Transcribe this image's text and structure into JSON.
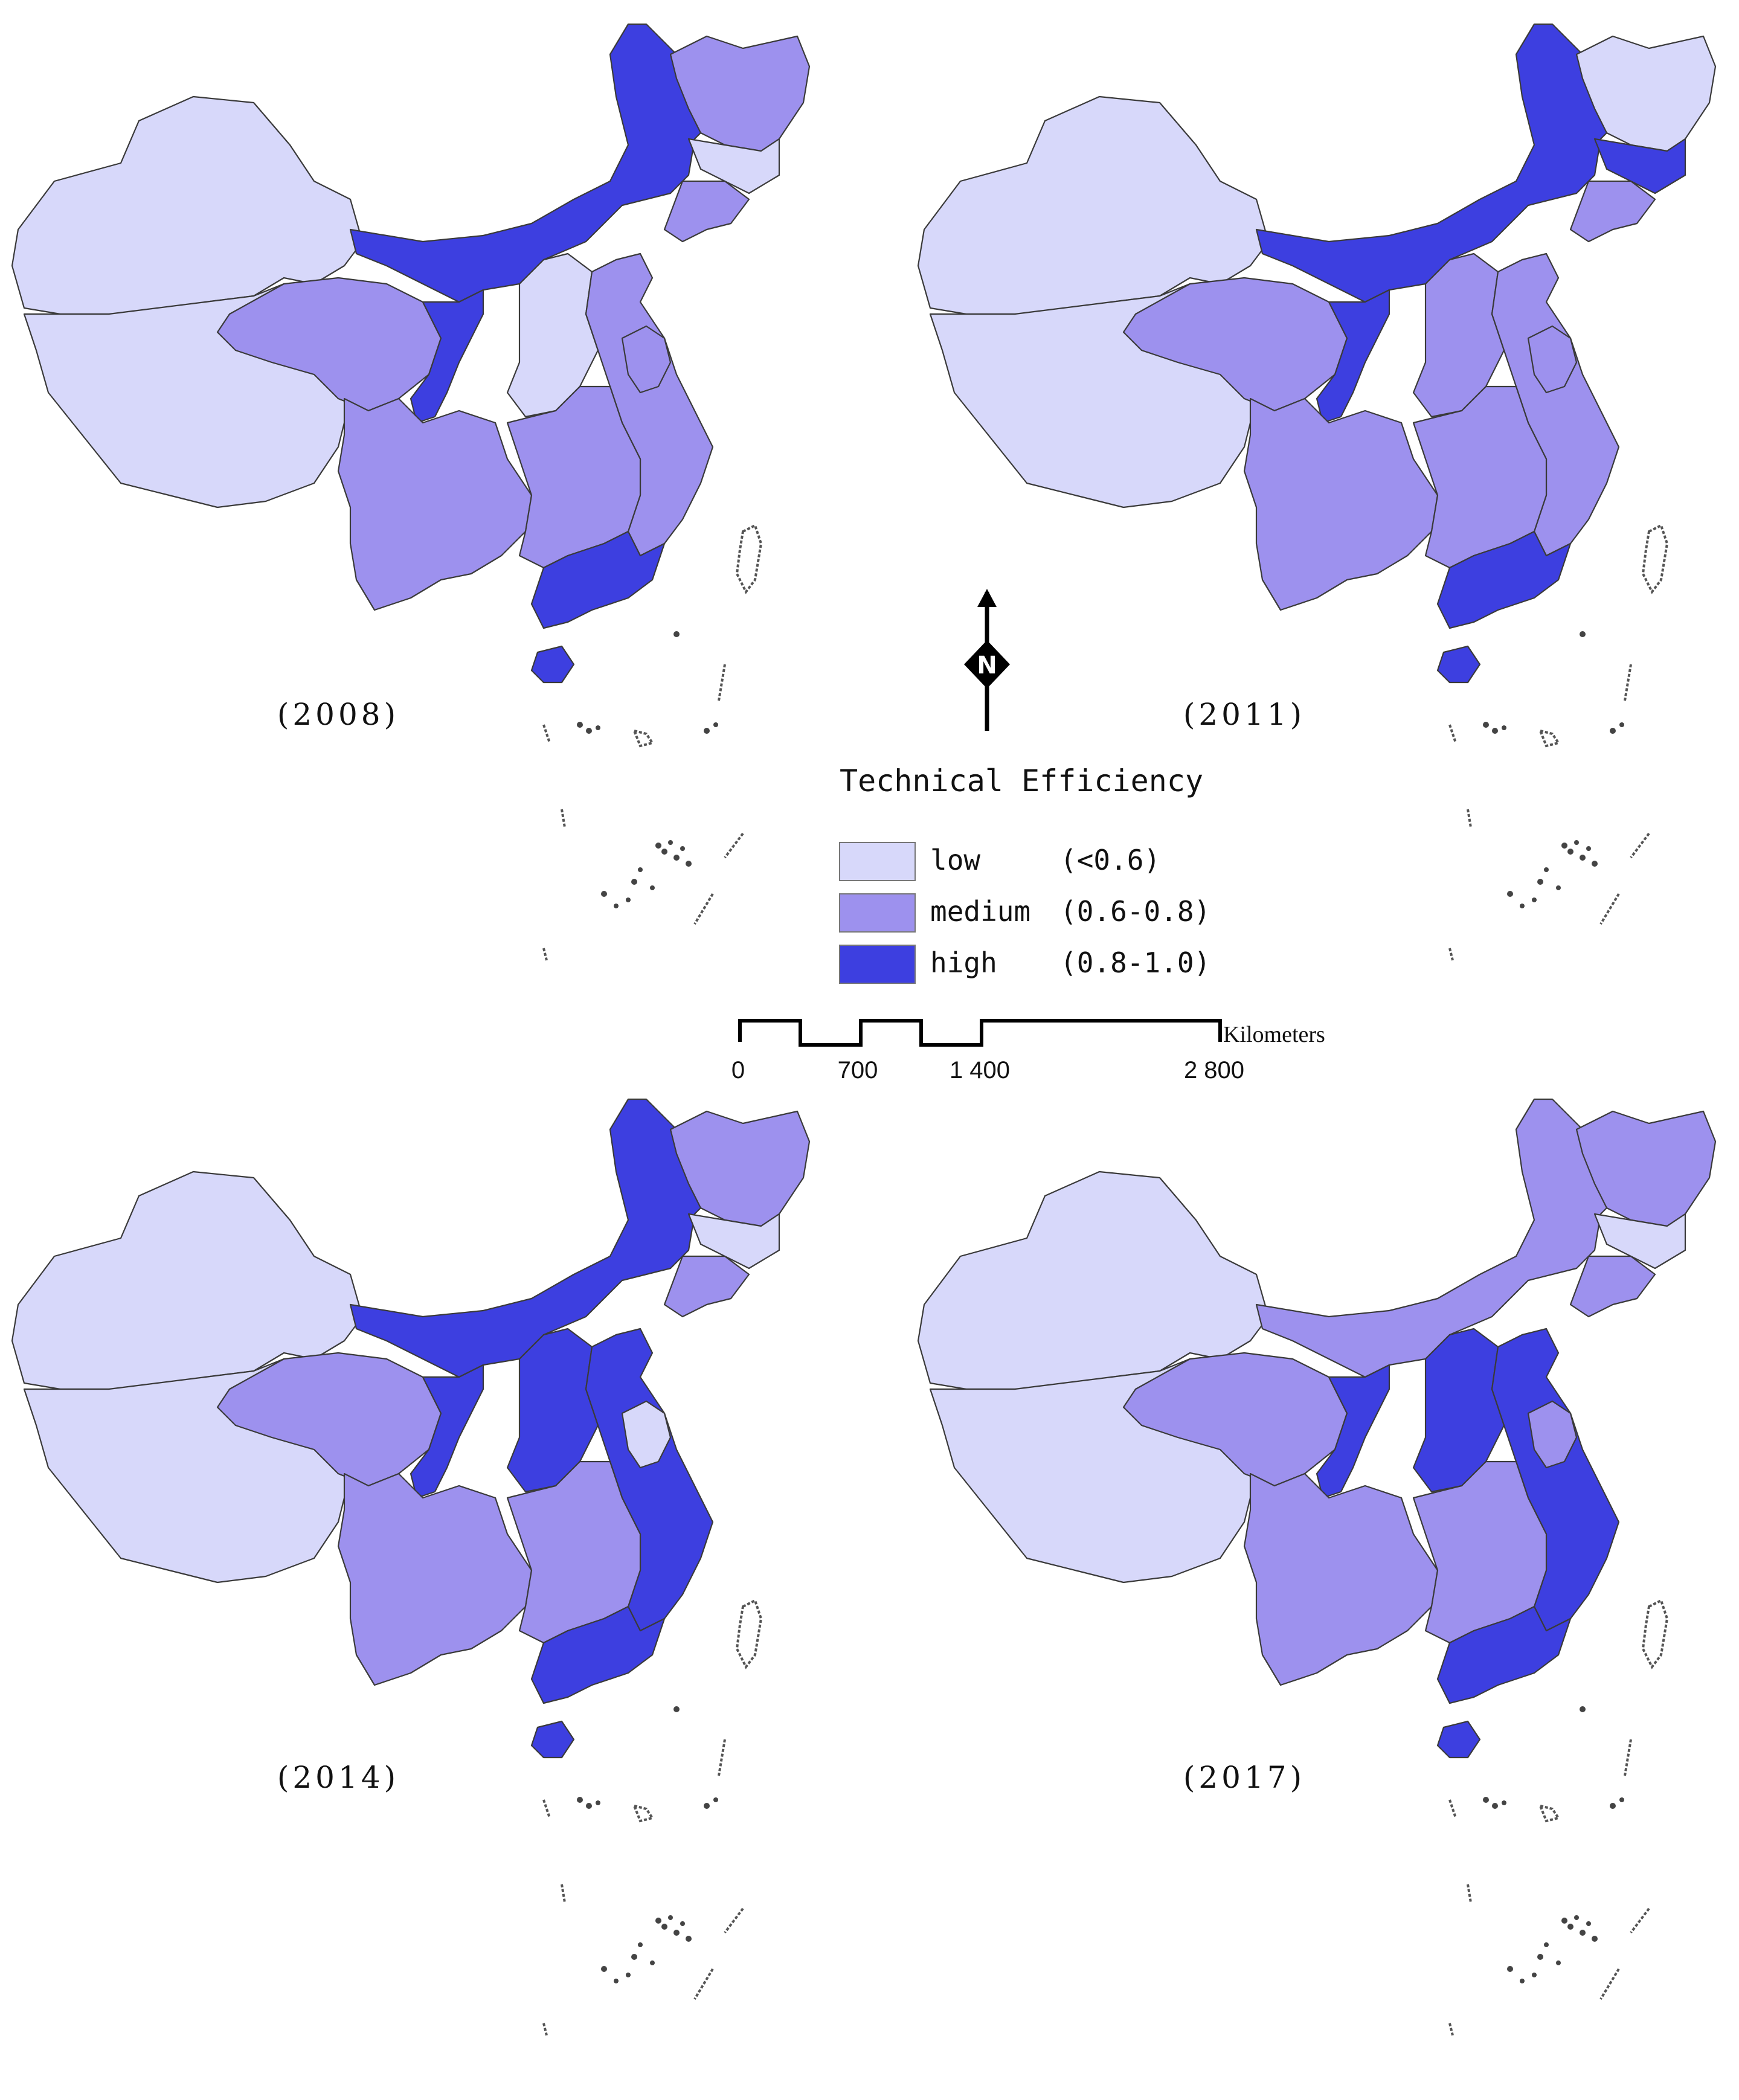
{
  "maps": [
    {
      "year_label": "(2008)",
      "levels": [
        "low",
        "high",
        "medium",
        "low",
        "medium",
        "low",
        "medium",
        "high",
        "medium",
        "low",
        "medium",
        "medium",
        "high",
        "medium"
      ]
    },
    {
      "year_label": "(2011)",
      "levels": [
        "low",
        "high",
        "low",
        "high",
        "medium",
        "low",
        "medium",
        "high",
        "medium",
        "medium",
        "medium",
        "medium",
        "high",
        "medium"
      ]
    },
    {
      "year_label": "(2014)",
      "levels": [
        "low",
        "high",
        "medium",
        "low",
        "medium",
        "low",
        "medium",
        "high",
        "medium",
        "high",
        "high",
        "medium",
        "high",
        "low"
      ]
    },
    {
      "year_label": "(2017)",
      "levels": [
        "low",
        "medium",
        "medium",
        "low",
        "medium",
        "low",
        "medium",
        "high",
        "medium",
        "high",
        "high",
        "medium",
        "high",
        "medium"
      ]
    }
  ],
  "legend": {
    "title": "Technical Efficiency",
    "items": [
      {
        "key": "low",
        "label": "low",
        "range": "(<0.6)",
        "color": "#d7d8fa"
      },
      {
        "key": "medium",
        "label": "medium",
        "range": "(0.6-0.8)",
        "color": "#9d91ee"
      },
      {
        "key": "high",
        "label": "high",
        "range": "(0.8-1.0)",
        "color": "#3d3fe0"
      }
    ]
  },
  "scale_bar": {
    "ticks": [
      "0",
      "700",
      "1 400",
      "2 800"
    ],
    "unit": "Kilometers"
  },
  "north_arrow": {
    "label": "N",
    "icon": "north-arrow-icon"
  }
}
